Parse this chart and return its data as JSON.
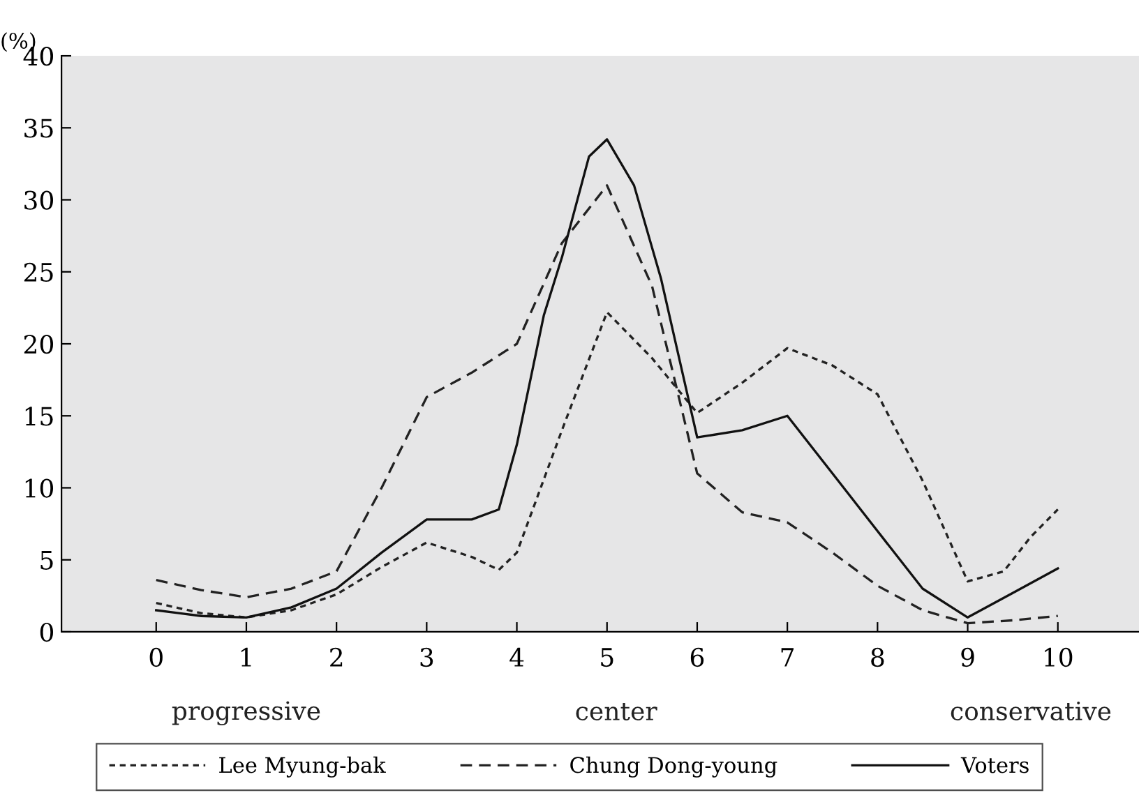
{
  "chart_data": {
    "type": "line",
    "ylabel": "(%)",
    "xlim": [
      -1.05,
      10.9
    ],
    "ylim": [
      0,
      40
    ],
    "xticks": [
      0,
      1,
      2,
      3,
      4,
      5,
      6,
      7,
      8,
      9,
      10
    ],
    "yticks": [
      0,
      5,
      10,
      15,
      20,
      25,
      30,
      35,
      40
    ],
    "annotations": [
      "progressive",
      "center",
      "conservative"
    ],
    "grid": false,
    "legend": "bottom",
    "marker": "none",
    "series": [
      {
        "name": "Lee Myung-bak",
        "color": "#222222",
        "line_style": "dotted",
        "x": [
          0,
          0.5,
          1,
          1.5,
          2,
          2.5,
          3,
          3.5,
          3.8,
          4,
          4.5,
          5,
          5.5,
          6,
          6.5,
          7,
          7.5,
          8,
          8.5,
          9,
          9.4,
          9.7,
          10
        ],
        "values": [
          2.0,
          1.3,
          1.0,
          1.5,
          2.6,
          4.5,
          6.2,
          5.2,
          4.3,
          5.5,
          14,
          22.2,
          19,
          15.2,
          17.3,
          19.7,
          18.5,
          16.5,
          10.5,
          3.5,
          4.2,
          6.6,
          8.5
        ]
      },
      {
        "name": "Chung Dong-young",
        "color": "#222222",
        "line_style": "dashed",
        "x": [
          0,
          0.5,
          1,
          1.5,
          2,
          2.5,
          3,
          3.5,
          4,
          4.5,
          5,
          5.5,
          6,
          6.5,
          7,
          7.5,
          8,
          8.5,
          9,
          9.5,
          10
        ],
        "values": [
          3.6,
          2.9,
          2.4,
          3.0,
          4.2,
          10,
          16.3,
          18,
          20,
          27,
          31,
          24,
          11,
          8.3,
          7.6,
          5.5,
          3.2,
          1.5,
          0.6,
          0.8,
          1.1
        ]
      },
      {
        "name": "Voters",
        "color": "#111111",
        "line_style": "solid",
        "x": [
          0,
          0.5,
          1,
          1.5,
          2,
          2.5,
          3,
          3.5,
          3.8,
          4,
          4.3,
          4.5,
          4.8,
          5,
          5.3,
          5.6,
          6,
          6.5,
          7,
          7.5,
          8,
          8.5,
          9,
          9.5,
          10
        ],
        "values": [
          1.5,
          1.1,
          1.0,
          1.7,
          3.0,
          5.5,
          7.8,
          7.8,
          8.5,
          13,
          22,
          26,
          33,
          34.2,
          31,
          24.5,
          13.5,
          14,
          15,
          11,
          7,
          3,
          1.0,
          2.7,
          4.4
        ]
      }
    ]
  }
}
